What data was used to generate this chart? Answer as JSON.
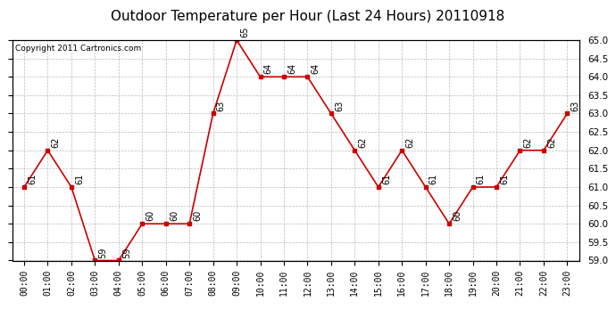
{
  "title": "Outdoor Temperature per Hour (Last 24 Hours) 20110918",
  "copyright_text": "Copyright 2011 Cartronics.com",
  "hours": [
    "00:00",
    "01:00",
    "02:00",
    "03:00",
    "04:00",
    "05:00",
    "06:00",
    "07:00",
    "08:00",
    "09:00",
    "10:00",
    "11:00",
    "12:00",
    "13:00",
    "14:00",
    "15:00",
    "16:00",
    "17:00",
    "18:00",
    "19:00",
    "20:00",
    "21:00",
    "22:00",
    "23:00"
  ],
  "temps": [
    61,
    62,
    61,
    59,
    59,
    60,
    60,
    60,
    63,
    65,
    64,
    64,
    64,
    63,
    62,
    61,
    62,
    61,
    60,
    61,
    61,
    62,
    62,
    63
  ],
  "line_color": "#cc0000",
  "marker": "s",
  "marker_size": 3,
  "ylim_min": 59.0,
  "ylim_max": 65.0,
  "ytick_step": 0.5,
  "bg_color": "#ffffff",
  "grid_color": "#bbbbbb",
  "label_fontsize": 7,
  "title_fontsize": 11,
  "copyright_fontsize": 6.5
}
